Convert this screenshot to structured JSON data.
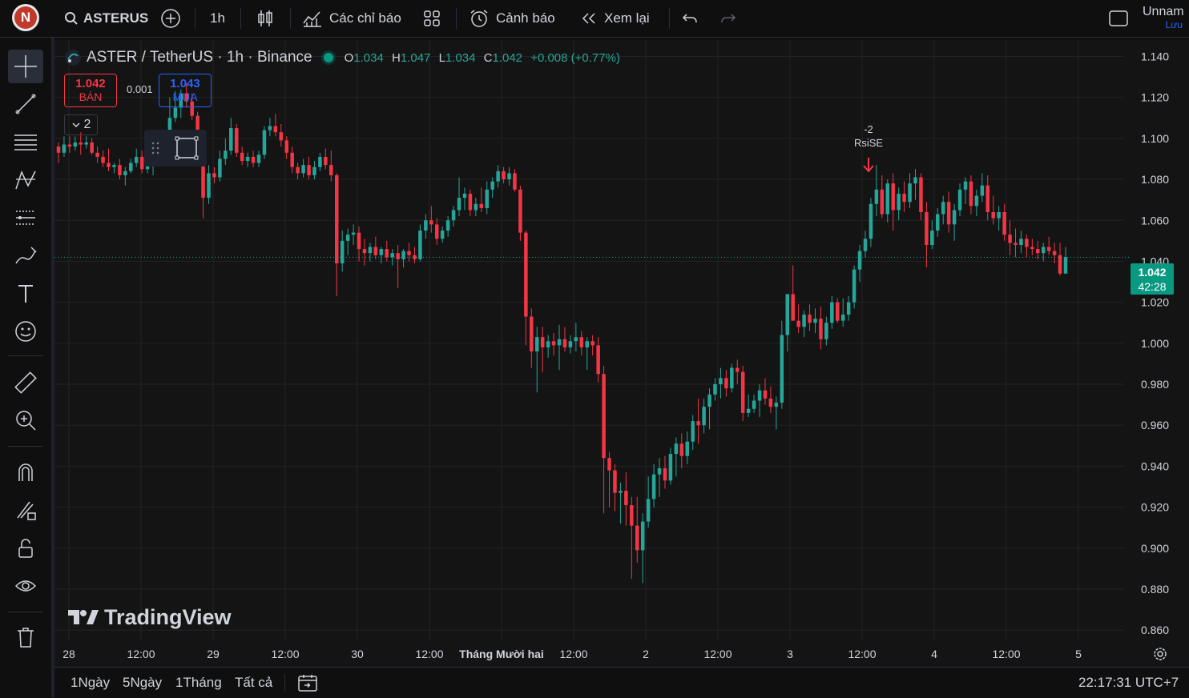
{
  "topbar": {
    "avatar_letter": "N",
    "symbol": "ASTERUS",
    "interval": "1h",
    "indicators_label": "Các chỉ báo",
    "alerts_label": "Cảnh báo",
    "replay_label": "Xem lại",
    "layout_name": "Unnam",
    "save_label": "Lưu"
  },
  "legend": {
    "title": "ASTER / TetherUS · 1h · Binance",
    "o_key": "O",
    "o_val": "1.034",
    "h_key": "H",
    "h_val": "1.047",
    "l_key": "L",
    "l_val": "1.034",
    "c_key": "C",
    "c_val": "1.042",
    "change": "+0.008 (+0.77%)"
  },
  "trade": {
    "sell_price": "1.042",
    "sell_label": "BÁN",
    "spread": "0.001",
    "buy_price": "1.043",
    "buy_label": "MUA",
    "collapse_count": "2"
  },
  "signal": {
    "value": "-2",
    "label": "RsiSE"
  },
  "price_axis": [
    "1.140",
    "1.120",
    "1.100",
    "1.080",
    "1.060",
    "1.040",
    "1.020",
    "1.000",
    "0.980",
    "0.960",
    "0.940",
    "0.920",
    "0.900",
    "0.880",
    "0.860"
  ],
  "time_axis": [
    "28",
    "12:00",
    "29",
    "12:00",
    "30",
    "12:00",
    "Tháng Mười hai",
    "12:00",
    "2",
    "12:00",
    "3",
    "12:00",
    "4",
    "12:00",
    "5"
  ],
  "current": {
    "price": "1.042",
    "countdown": "42:28"
  },
  "watermark": "TradingView",
  "bottombar": {
    "ranges": [
      "1Ngày",
      "5Ngày",
      "1Tháng",
      "Tất cả"
    ],
    "clock": "22:17:31 UTC+7"
  },
  "colors": {
    "up": "#26a69a",
    "down": "#f23645",
    "accent": "#2962ff"
  },
  "chart_data": {
    "type": "candlestick",
    "ylim": [
      0.855,
      1.148
    ],
    "candles": [
      [
        1.096,
        1.098,
        1.088,
        1.093
      ],
      [
        1.093,
        1.101,
        1.091,
        1.097
      ],
      [
        1.097,
        1.101,
        1.093,
        1.096
      ],
      [
        1.096,
        1.101,
        1.094,
        1.098
      ],
      [
        1.098,
        1.103,
        1.092,
        1.097
      ],
      [
        1.097,
        1.101,
        1.095,
        1.098
      ],
      [
        1.098,
        1.1,
        1.092,
        1.093
      ],
      [
        1.093,
        1.096,
        1.088,
        1.091
      ],
      [
        1.091,
        1.094,
        1.086,
        1.088
      ],
      [
        1.088,
        1.095,
        1.084,
        1.086
      ],
      [
        1.086,
        1.088,
        1.083,
        1.087
      ],
      [
        1.087,
        1.09,
        1.08,
        1.082
      ],
      [
        1.082,
        1.086,
        1.077,
        1.084
      ],
      [
        1.084,
        1.09,
        1.083,
        1.088
      ],
      [
        1.088,
        1.095,
        1.086,
        1.091
      ],
      [
        1.091,
        1.094,
        1.083,
        1.085
      ],
      [
        1.085,
        1.089,
        1.083,
        1.087
      ],
      [
        1.087,
        1.092,
        1.082,
        1.089
      ],
      [
        1.089,
        1.1,
        1.087,
        1.095
      ],
      [
        1.095,
        1.102,
        1.09,
        1.093
      ],
      [
        1.093,
        1.12,
        1.092,
        1.11
      ],
      [
        1.11,
        1.123,
        1.108,
        1.115
      ],
      [
        1.115,
        1.124,
        1.11,
        1.122
      ],
      [
        1.122,
        1.127,
        1.115,
        1.118
      ],
      [
        1.118,
        1.122,
        1.109,
        1.111
      ],
      [
        1.111,
        1.113,
        1.095,
        1.097
      ],
      [
        1.097,
        1.099,
        1.061,
        1.071
      ],
      [
        1.071,
        1.087,
        1.068,
        1.083
      ],
      [
        1.083,
        1.086,
        1.078,
        1.081
      ],
      [
        1.081,
        1.094,
        1.079,
        1.09
      ],
      [
        1.09,
        1.1,
        1.087,
        1.094
      ],
      [
        1.094,
        1.11,
        1.092,
        1.105
      ],
      [
        1.105,
        1.107,
        1.091,
        1.093
      ],
      [
        1.093,
        1.096,
        1.087,
        1.089
      ],
      [
        1.089,
        1.093,
        1.086,
        1.091
      ],
      [
        1.091,
        1.094,
        1.086,
        1.088
      ],
      [
        1.088,
        1.094,
        1.086,
        1.092
      ],
      [
        1.092,
        1.106,
        1.09,
        1.104
      ],
      [
        1.104,
        1.11,
        1.101,
        1.106
      ],
      [
        1.106,
        1.112,
        1.101,
        1.103
      ],
      [
        1.103,
        1.107,
        1.096,
        1.099
      ],
      [
        1.099,
        1.101,
        1.09,
        1.093
      ],
      [
        1.093,
        1.096,
        1.083,
        1.086
      ],
      [
        1.086,
        1.088,
        1.08,
        1.083
      ],
      [
        1.083,
        1.09,
        1.081,
        1.087
      ],
      [
        1.087,
        1.091,
        1.08,
        1.082
      ],
      [
        1.082,
        1.089,
        1.08,
        1.086
      ],
      [
        1.086,
        1.093,
        1.084,
        1.091
      ],
      [
        1.091,
        1.095,
        1.085,
        1.087
      ],
      [
        1.087,
        1.094,
        1.079,
        1.082
      ],
      [
        1.082,
        1.083,
        1.023,
        1.039
      ],
      [
        1.039,
        1.055,
        1.035,
        1.05
      ],
      [
        1.05,
        1.056,
        1.043,
        1.053
      ],
      [
        1.053,
        1.058,
        1.048,
        1.054
      ],
      [
        1.054,
        1.057,
        1.04,
        1.046
      ],
      [
        1.046,
        1.051,
        1.038,
        1.044
      ],
      [
        1.044,
        1.049,
        1.04,
        1.047
      ],
      [
        1.047,
        1.052,
        1.041,
        1.043
      ],
      [
        1.043,
        1.047,
        1.039,
        1.046
      ],
      [
        1.046,
        1.05,
        1.04,
        1.042
      ],
      [
        1.042,
        1.046,
        1.038,
        1.044
      ],
      [
        1.044,
        1.048,
        1.027,
        1.041
      ],
      [
        1.041,
        1.046,
        1.037,
        1.045
      ],
      [
        1.045,
        1.049,
        1.04,
        1.043
      ],
      [
        1.043,
        1.047,
        1.039,
        1.041
      ],
      [
        1.041,
        1.058,
        1.04,
        1.055
      ],
      [
        1.055,
        1.063,
        1.051,
        1.06
      ],
      [
        1.06,
        1.067,
        1.054,
        1.058
      ],
      [
        1.058,
        1.061,
        1.048,
        1.051
      ],
      [
        1.051,
        1.057,
        1.049,
        1.055
      ],
      [
        1.055,
        1.062,
        1.052,
        1.06
      ],
      [
        1.06,
        1.067,
        1.057,
        1.065
      ],
      [
        1.065,
        1.081,
        1.062,
        1.071
      ],
      [
        1.071,
        1.076,
        1.065,
        1.073
      ],
      [
        1.073,
        1.075,
        1.062,
        1.065
      ],
      [
        1.065,
        1.071,
        1.062,
        1.068
      ],
      [
        1.068,
        1.076,
        1.064,
        1.066
      ],
      [
        1.066,
        1.079,
        1.063,
        1.075
      ],
      [
        1.075,
        1.081,
        1.071,
        1.079
      ],
      [
        1.079,
        1.087,
        1.076,
        1.084
      ],
      [
        1.084,
        1.086,
        1.078,
        1.08
      ],
      [
        1.08,
        1.086,
        1.077,
        1.083
      ],
      [
        1.083,
        1.085,
        1.074,
        1.075
      ],
      [
        1.075,
        1.077,
        1.05,
        1.054
      ],
      [
        1.054,
        1.055,
        0.999,
        1.013
      ],
      [
        1.013,
        1.017,
        0.988,
        0.996
      ],
      [
        0.996,
        1.008,
        0.976,
        1.003
      ],
      [
        1.003,
        1.008,
        0.986,
        0.998
      ],
      [
        0.998,
        1.004,
        0.993,
        1.001
      ],
      [
        1.001,
        1.005,
        0.994,
        0.999
      ],
      [
        0.999,
        1.009,
        0.987,
        1.002
      ],
      [
        1.002,
        1.008,
        0.996,
        0.998
      ],
      [
        0.998,
        1.004,
        0.995,
        1.001
      ],
      [
        1.001,
        1.01,
        0.996,
        1.003
      ],
      [
        1.003,
        1.006,
        0.994,
        0.998
      ],
      [
        0.998,
        1.003,
        0.987,
        1.001
      ],
      [
        1.001,
        1.004,
        0.994,
        0.999
      ],
      [
        0.999,
        1.003,
        0.981,
        0.985
      ],
      [
        0.985,
        0.989,
        0.917,
        0.944
      ],
      [
        0.944,
        0.947,
        0.92,
        0.938
      ],
      [
        0.938,
        0.941,
        0.918,
        0.927
      ],
      [
        0.927,
        0.932,
        0.912,
        0.928
      ],
      [
        0.928,
        0.937,
        0.911,
        0.921
      ],
      [
        0.921,
        0.925,
        0.885,
        0.911
      ],
      [
        0.911,
        0.925,
        0.893,
        0.899
      ],
      [
        0.899,
        0.917,
        0.883,
        0.913
      ],
      [
        0.913,
        0.935,
        0.91,
        0.924
      ],
      [
        0.924,
        0.941,
        0.92,
        0.936
      ],
      [
        0.936,
        0.944,
        0.925,
        0.939
      ],
      [
        0.939,
        0.945,
        0.929,
        0.933
      ],
      [
        0.933,
        0.949,
        0.931,
        0.946
      ],
      [
        0.946,
        0.954,
        0.935,
        0.951
      ],
      [
        0.951,
        0.956,
        0.939,
        0.945
      ],
      [
        0.945,
        0.957,
        0.941,
        0.952
      ],
      [
        0.952,
        0.965,
        0.948,
        0.962
      ],
      [
        0.962,
        0.973,
        0.951,
        0.96
      ],
      [
        0.96,
        0.973,
        0.956,
        0.969
      ],
      [
        0.969,
        0.978,
        0.958,
        0.975
      ],
      [
        0.975,
        0.983,
        0.972,
        0.98
      ],
      [
        0.98,
        0.988,
        0.973,
        0.983
      ],
      [
        0.983,
        0.987,
        0.974,
        0.978
      ],
      [
        0.978,
        0.99,
        0.976,
        0.988
      ],
      [
        0.988,
        0.992,
        0.98,
        0.986
      ],
      [
        0.986,
        0.989,
        0.962,
        0.966
      ],
      [
        0.966,
        0.975,
        0.964,
        0.968
      ],
      [
        0.968,
        0.975,
        0.966,
        0.972
      ],
      [
        0.972,
        0.98,
        0.964,
        0.977
      ],
      [
        0.977,
        0.983,
        0.97,
        0.973
      ],
      [
        0.973,
        0.979,
        0.966,
        0.969
      ],
      [
        0.969,
        0.974,
        0.958,
        0.971
      ],
      [
        0.971,
        1.011,
        0.968,
        1.004
      ],
      [
        1.004,
        1.023,
        0.996,
        1.024
      ],
      [
        1.024,
        1.038,
        1.013,
        1.011
      ],
      [
        1.011,
        1.019,
        1.005,
        1.008
      ],
      [
        1.008,
        1.016,
        1.003,
        1.014
      ],
      [
        1.014,
        1.019,
        1.006,
        1.01
      ],
      [
        1.01,
        1.017,
        1.005,
        1.012
      ],
      [
        1.012,
        1.018,
        0.997,
        1.002
      ],
      [
        1.002,
        1.013,
        0.999,
        1.01
      ],
      [
        1.01,
        1.023,
        1.007,
        1.02
      ],
      [
        1.02,
        1.022,
        1.01,
        1.011
      ],
      [
        1.011,
        1.022,
        1.008,
        1.014
      ],
      [
        1.014,
        1.023,
        1.011,
        1.02
      ],
      [
        1.02,
        1.038,
        1.017,
        1.036
      ],
      [
        1.036,
        1.048,
        1.03,
        1.045
      ],
      [
        1.045,
        1.055,
        1.042,
        1.051
      ],
      [
        1.051,
        1.071,
        1.047,
        1.068
      ],
      [
        1.068,
        1.087,
        1.062,
        1.075
      ],
      [
        1.075,
        1.082,
        1.061,
        1.063
      ],
      [
        1.063,
        1.08,
        1.059,
        1.078
      ],
      [
        1.078,
        1.083,
        1.055,
        1.065
      ],
      [
        1.065,
        1.076,
        1.06,
        1.073
      ],
      [
        1.073,
        1.079,
        1.064,
        1.069
      ],
      [
        1.069,
        1.083,
        1.066,
        1.078
      ],
      [
        1.078,
        1.085,
        1.07,
        1.081
      ],
      [
        1.081,
        1.083,
        1.06,
        1.064
      ],
      [
        1.064,
        1.069,
        1.037,
        1.048
      ],
      [
        1.048,
        1.06,
        1.046,
        1.055
      ],
      [
        1.055,
        1.066,
        1.052,
        1.063
      ],
      [
        1.063,
        1.072,
        1.058,
        1.069
      ],
      [
        1.069,
        1.074,
        1.054,
        1.058
      ],
      [
        1.058,
        1.068,
        1.05,
        1.065
      ],
      [
        1.065,
        1.078,
        1.062,
        1.075
      ],
      [
        1.075,
        1.081,
        1.068,
        1.079
      ],
      [
        1.079,
        1.082,
        1.063,
        1.067
      ],
      [
        1.067,
        1.075,
        1.062,
        1.072
      ],
      [
        1.072,
        1.083,
        1.069,
        1.077
      ],
      [
        1.077,
        1.082,
        1.06,
        1.064
      ],
      [
        1.064,
        1.072,
        1.058,
        1.061
      ],
      [
        1.061,
        1.067,
        1.055,
        1.064
      ],
      [
        1.064,
        1.068,
        1.05,
        1.053
      ],
      [
        1.053,
        1.06,
        1.043,
        1.049
      ],
      [
        1.049,
        1.056,
        1.042,
        1.048
      ],
      [
        1.048,
        1.055,
        1.044,
        1.051
      ],
      [
        1.051,
        1.053,
        1.042,
        1.047
      ],
      [
        1.047,
        1.051,
        1.043,
        1.046
      ],
      [
        1.046,
        1.05,
        1.041,
        1.044
      ],
      [
        1.044,
        1.049,
        1.04,
        1.047
      ],
      [
        1.047,
        1.052,
        1.043,
        1.045
      ],
      [
        1.045,
        1.049,
        1.039,
        1.043
      ],
      [
        1.043,
        1.049,
        1.033,
        1.034
      ],
      [
        1.034,
        1.047,
        1.034,
        1.042
      ]
    ]
  }
}
